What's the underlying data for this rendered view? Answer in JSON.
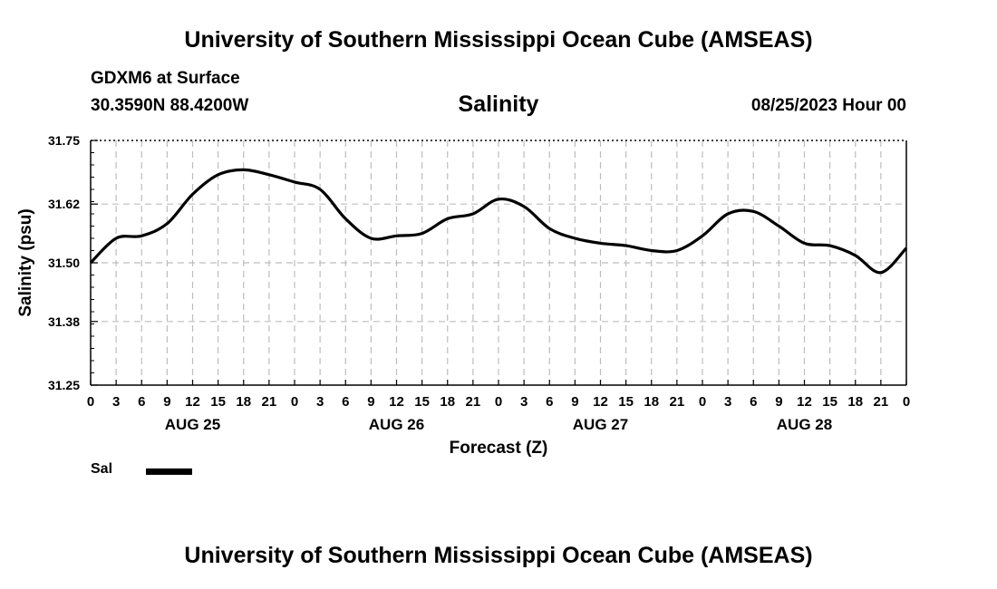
{
  "header": {
    "title": "University of Southern Mississippi Ocean Cube (AMSEAS)",
    "station": "GDXM6 at Surface",
    "coords": "30.3590N  88.4200W",
    "run_time": "08/25/2023 Hour 00"
  },
  "footer": {
    "title": "University of Southern Mississippi Ocean Cube (AMSEAS)"
  },
  "chart_data": {
    "type": "line",
    "title": "Salinity",
    "xlabel": "Forecast (Z)",
    "ylabel": "Salinity (psu)",
    "ylim": [
      31.25,
      31.75
    ],
    "xlim": [
      0,
      96
    ],
    "y_ticks": [
      31.25,
      31.38,
      31.5,
      31.62,
      31.75
    ],
    "y_tick_labels": [
      "31.25",
      "31.38",
      "31.50",
      "31.62",
      "31.75"
    ],
    "x_ticks": [
      0,
      3,
      6,
      9,
      12,
      15,
      18,
      21,
      24,
      27,
      30,
      33,
      36,
      39,
      42,
      45,
      48,
      51,
      54,
      57,
      60,
      63,
      66,
      69,
      72,
      75,
      78,
      81,
      84,
      87,
      90,
      93,
      96
    ],
    "x_tick_labels": [
      "0",
      "3",
      "6",
      "9",
      "12",
      "15",
      "18",
      "21",
      "0",
      "3",
      "6",
      "9",
      "12",
      "15",
      "18",
      "21",
      "0",
      "3",
      "6",
      "9",
      "12",
      "15",
      "18",
      "21",
      "0",
      "3",
      "6",
      "9",
      "12",
      "15",
      "18",
      "21",
      "0"
    ],
    "date_labels": [
      {
        "hour": 12,
        "label": "AUG 25"
      },
      {
        "hour": 36,
        "label": "AUG 26"
      },
      {
        "hour": 60,
        "label": "AUG 27"
      },
      {
        "hour": 84,
        "label": "AUG 28"
      }
    ],
    "grid": true,
    "legend": [
      {
        "name": "Sal",
        "color": "#000000"
      }
    ],
    "series": [
      {
        "name": "Sal",
        "color": "#000000",
        "x": [
          0,
          3,
          6,
          9,
          12,
          15,
          18,
          21,
          24,
          27,
          30,
          33,
          36,
          39,
          42,
          45,
          48,
          51,
          54,
          57,
          60,
          63,
          66,
          69,
          72,
          75,
          78,
          81,
          84,
          87,
          90,
          93,
          96
        ],
        "values": [
          31.5,
          31.55,
          31.555,
          31.58,
          31.64,
          31.68,
          31.69,
          31.68,
          31.665,
          31.65,
          31.59,
          31.55,
          31.555,
          31.56,
          31.59,
          31.6,
          31.63,
          31.615,
          31.57,
          31.55,
          31.54,
          31.535,
          31.525,
          31.525,
          31.555,
          31.6,
          31.605,
          31.575,
          31.54,
          31.535,
          31.515,
          31.48,
          31.53
        ]
      }
    ]
  }
}
